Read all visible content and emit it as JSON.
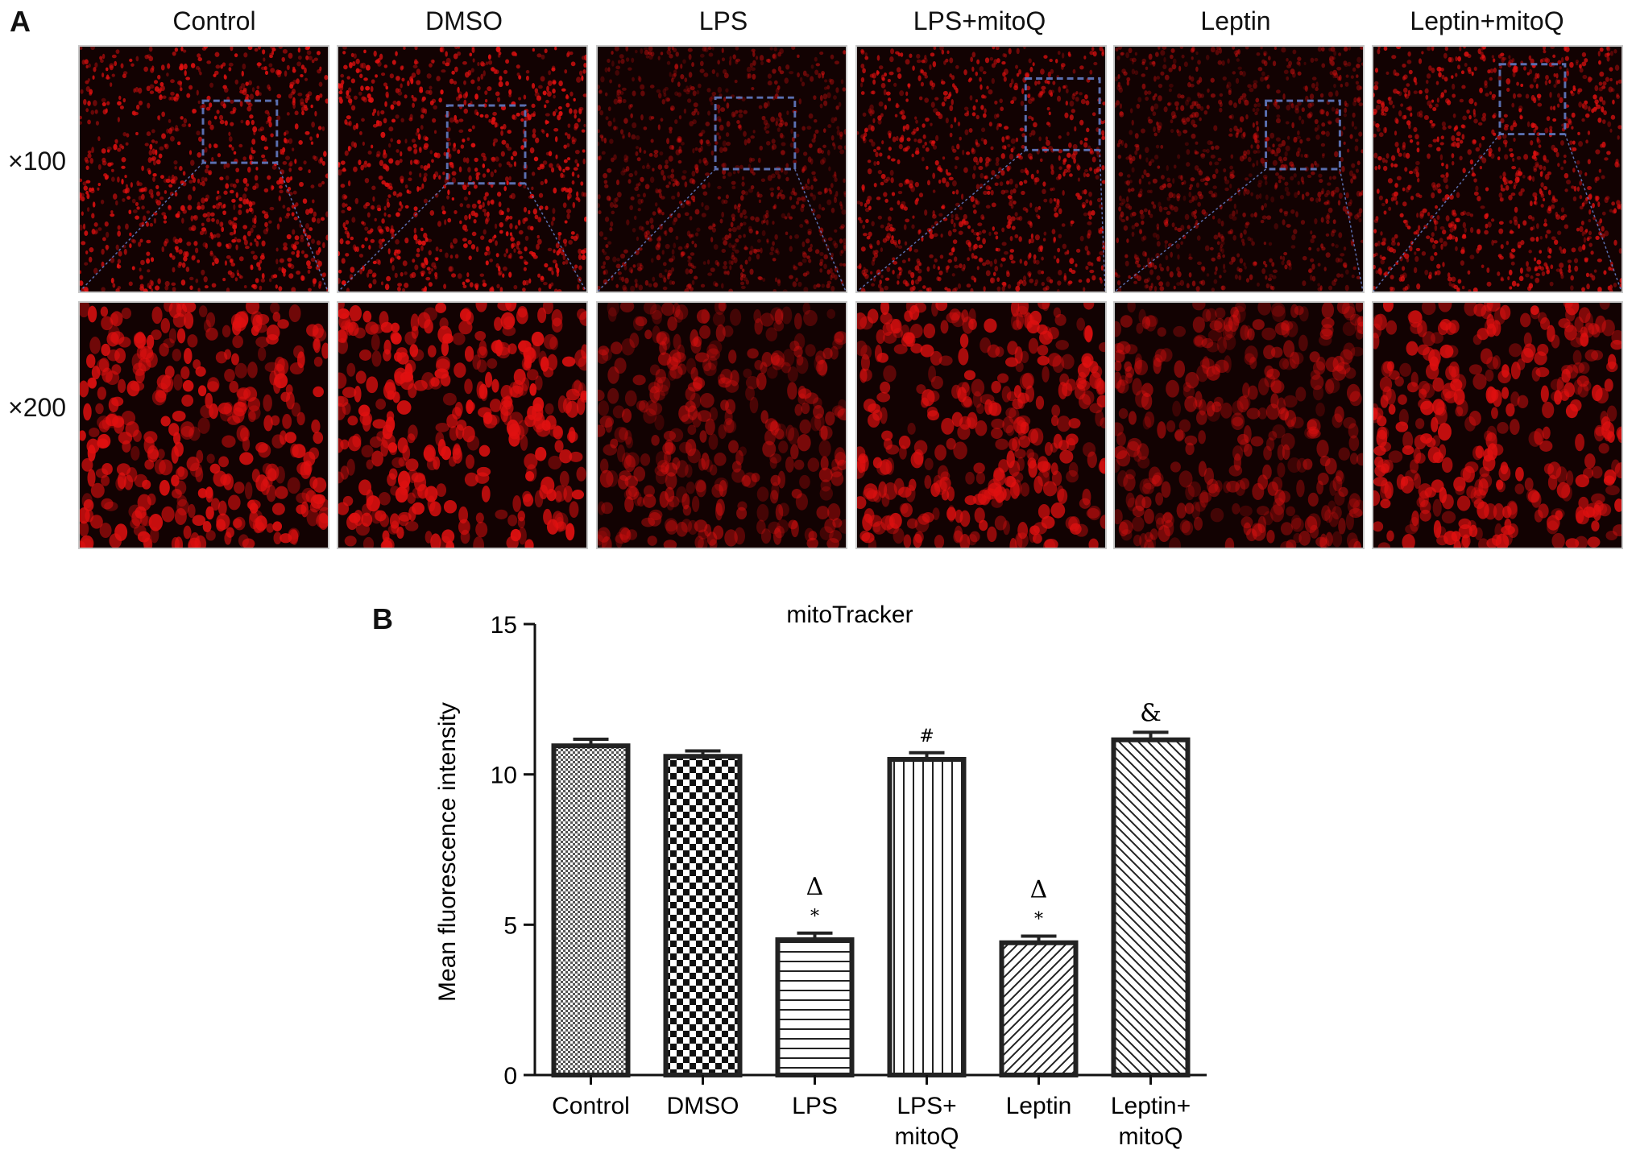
{
  "panel_a": {
    "letter": "A",
    "columns": [
      "Control",
      "DMSO",
      "LPS",
      "LPS+mitoQ",
      "Leptin",
      "Leptin+mitoQ"
    ],
    "rows": [
      "×100",
      "×200"
    ],
    "brightness": [
      0.95,
      1.0,
      0.55,
      0.85,
      0.55,
      0.9
    ]
  },
  "panel_b": {
    "letter": "B"
  },
  "colors": {
    "cells": "#e01010",
    "background": "#120202",
    "inset_box": "#5a6fb0",
    "bar_stroke": "#222222"
  },
  "chart_data": {
    "type": "bar",
    "title": "mitoTracker",
    "ylabel": "Mean fluorescence intensity",
    "xlabel": "",
    "categories": [
      [
        "Control"
      ],
      [
        "DMSO"
      ],
      [
        "LPS"
      ],
      [
        "LPS+",
        "mitoQ"
      ],
      [
        "Leptin"
      ],
      [
        "Leptin+",
        "mitoQ"
      ]
    ],
    "values": [
      10.95,
      10.6,
      4.5,
      10.5,
      4.4,
      11.15
    ],
    "errors": [
      0.22,
      0.18,
      0.22,
      0.22,
      0.22,
      0.25
    ],
    "patterns": [
      "fine-checker",
      "checker",
      "horizontal",
      "vertical",
      "diagonal",
      "diagonal-dense"
    ],
    "annotations": [
      [],
      [],
      [
        "Δ",
        "*"
      ],
      [
        "#"
      ],
      [
        "Δ",
        "*"
      ],
      [
        "&"
      ]
    ],
    "ylim": [
      0,
      15
    ],
    "yticks": [
      0,
      5,
      10,
      15
    ],
    "grid": false,
    "legend": "none"
  }
}
